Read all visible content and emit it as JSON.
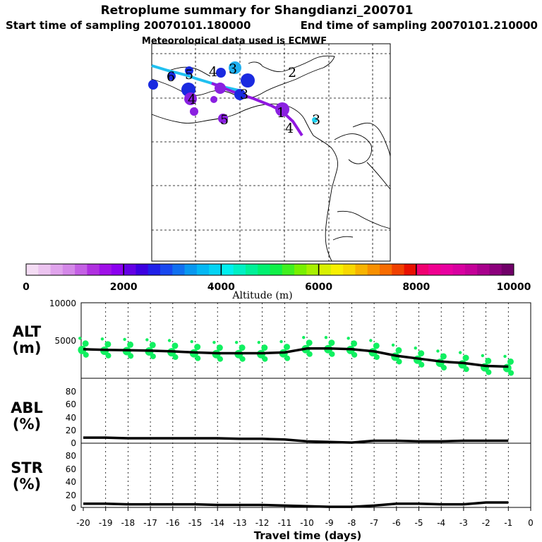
{
  "header": {
    "title": "Retroplume summary for Shangdianzi_200701",
    "start_time": "Start time of sampling 20070101.180000",
    "end_time": "End time of sampling 20070101.210000",
    "met_data": "Meteorological data used is ECMWF"
  },
  "map": {
    "trajectory_cyan_color": "#20c0f0",
    "trajectory_purple_color": "#9018e0",
    "day_labels": [
      {
        "text": "6",
        "color": "#000000"
      },
      {
        "text": "5",
        "color": "#000000"
      },
      {
        "text": "4",
        "color": "#000000"
      },
      {
        "text": "3",
        "color": "#000000"
      },
      {
        "text": "2",
        "color": "#000000"
      },
      {
        "text": "1",
        "color": "#000000"
      },
      {
        "text": "5",
        "color": "#000000"
      },
      {
        "text": "4",
        "color": "#000000"
      },
      {
        "text": "3",
        "color": "#000000"
      },
      {
        "text": "3",
        "color": "#000000"
      },
      {
        "text": "4",
        "color": "#000000"
      }
    ]
  },
  "colorbar": {
    "xlabel": "Altitude (m)",
    "ticks": [
      "0",
      "2000",
      "4000",
      "6000",
      "8000",
      "10000"
    ],
    "colors": [
      "#f4dcf4",
      "#ecc4f0",
      "#e0a4ec",
      "#d488e8",
      "#c460e4",
      "#b030e0",
      "#a010e8",
      "#8c00f0",
      "#6400e4",
      "#3c00e0",
      "#2020e8",
      "#1848f0",
      "#1070f0",
      "#0898f0",
      "#04b8f4",
      "#04d4f4",
      "#00f0f0",
      "#00f0c4",
      "#00f098",
      "#00f070",
      "#10f048",
      "#40f020",
      "#78f000",
      "#a8f000",
      "#d8f000",
      "#f8f000",
      "#f8d800",
      "#f8b400",
      "#f89000",
      "#f86c00",
      "#f04000",
      "#e81000",
      "#f00070",
      "#f00090",
      "#e800a0",
      "#d800a0",
      "#c40098",
      "#a8008c",
      "#8c007c",
      "#700068"
    ]
  },
  "chart_data": [
    {
      "type": "line",
      "panel": "ALT",
      "ylabel": [
        "ALT",
        "(m)"
      ],
      "ylim": [
        0,
        10000
      ],
      "yticks": [
        "10000",
        "5000"
      ],
      "x": [
        -20,
        -19,
        -18,
        -17,
        -16,
        -15,
        -14,
        -13,
        -12,
        -11,
        -10,
        -9,
        -8,
        -7,
        -6,
        -5,
        -4,
        -3,
        -2,
        -1
      ],
      "values": [
        4000,
        3900,
        3850,
        3800,
        3700,
        3550,
        3450,
        3450,
        3450,
        3550,
        4100,
        4100,
        4000,
        3700,
        3100,
        2700,
        2300,
        2100,
        1700,
        1600
      ],
      "scatter_color": "#10f060"
    },
    {
      "type": "line",
      "panel": "ABL",
      "ylabel": [
        "ABL",
        "(%)"
      ],
      "ylim": [
        0,
        100
      ],
      "yticks": [
        "80",
        "60",
        "40",
        "20",
        "0"
      ],
      "x": [
        -20,
        -19,
        -18,
        -17,
        -16,
        -15,
        -14,
        -13,
        -12,
        -11,
        -10,
        -9,
        -8,
        -7,
        -6,
        -5,
        -4,
        -3,
        -2,
        -1
      ],
      "values": [
        9,
        9,
        8,
        8,
        8,
        8,
        8,
        7,
        7,
        6,
        3,
        2,
        1,
        4,
        4,
        3,
        3,
        4,
        4,
        4
      ]
    },
    {
      "type": "line",
      "panel": "STR",
      "ylabel": [
        "STR",
        "(%)"
      ],
      "ylim": [
        0,
        100
      ],
      "yticks": [
        "80",
        "60",
        "40",
        "20",
        "0"
      ],
      "x": [
        -20,
        -19,
        -18,
        -17,
        -16,
        -15,
        -14,
        -13,
        -12,
        -11,
        -10,
        -9,
        -8,
        -7,
        -6,
        -5,
        -4,
        -3,
        -2,
        -1
      ],
      "values": [
        6,
        6,
        5,
        5,
        5,
        5,
        4,
        4,
        4,
        3,
        2,
        1,
        1,
        3,
        6,
        6,
        5,
        5,
        8,
        8
      ]
    }
  ],
  "shared_xaxis": {
    "xlabel": "Travel time (days)",
    "ticks": [
      "-20",
      "-19",
      "-18",
      "-17",
      "-16",
      "-15",
      "-14",
      "-13",
      "-12",
      "-11",
      "-10",
      "-9",
      "-8",
      "-7",
      "-6",
      "-5",
      "-4",
      "-3",
      "-2",
      "-1",
      "0"
    ]
  }
}
